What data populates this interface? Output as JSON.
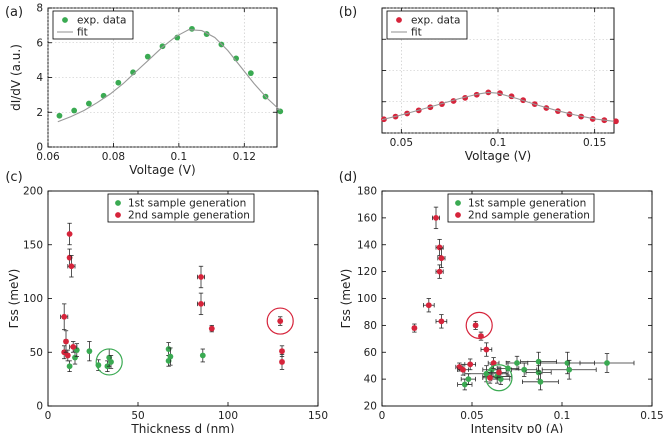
{
  "colors": {
    "green": "#3aaa52",
    "red": "#d6243b",
    "fit": "#999999",
    "grid": "#bfbfbf",
    "err": "#2a2a2a",
    "circle_green": "#3aaa52",
    "circle_red": "#d6243b"
  },
  "chart_data": [
    {
      "panel": "(a)",
      "type": "scatter",
      "xlabel": "Voltage (V)",
      "ylabel": "dI/dV (a.u.)",
      "xlim": [
        0.06,
        0.13
      ],
      "ylim": [
        0,
        8
      ],
      "xticks": [
        "0.06",
        "0.08",
        "0.1",
        "0.12"
      ],
      "yticks": [
        "0",
        "2",
        "4",
        "6",
        "8"
      ],
      "grid": true,
      "legend_position": "top-left",
      "series": [
        {
          "name": "exp. data",
          "kind": "points",
          "color": "green",
          "x": [
            0.0635,
            0.068,
            0.0725,
            0.077,
            0.0815,
            0.086,
            0.0905,
            0.095,
            0.0995,
            0.104,
            0.1085,
            0.113,
            0.1175,
            0.122,
            0.1265,
            0.131
          ],
          "y": [
            1.8,
            2.1,
            2.5,
            2.95,
            3.7,
            4.3,
            5.2,
            5.8,
            6.3,
            6.8,
            6.5,
            5.9,
            5.1,
            4.25,
            2.9,
            2.05
          ]
        },
        {
          "name": "fit",
          "kind": "line",
          "color": "fit",
          "x": [
            0.063,
            0.067,
            0.071,
            0.075,
            0.079,
            0.083,
            0.087,
            0.091,
            0.095,
            0.099,
            0.103,
            0.107,
            0.111,
            0.115,
            0.119,
            0.123,
            0.127,
            0.131
          ],
          "y": [
            1.45,
            1.75,
            2.1,
            2.55,
            3.05,
            3.65,
            4.35,
            5.05,
            5.75,
            6.35,
            6.75,
            6.7,
            6.3,
            5.55,
            4.6,
            3.65,
            2.8,
            2.1
          ]
        }
      ]
    },
    {
      "panel": "(b)",
      "type": "scatter",
      "xlabel": "Voltage (V)",
      "xlim": [
        0.04,
        0.16
      ],
      "ylim": [
        0,
        8
      ],
      "xticks": [
        "0.05",
        "0.1",
        "0.15"
      ],
      "grid": true,
      "legend_position": "top-left",
      "series": [
        {
          "name": "exp. data",
          "kind": "points",
          "color": "red",
          "x": [
            0.041,
            0.047,
            0.053,
            0.059,
            0.065,
            0.071,
            0.077,
            0.083,
            0.089,
            0.095,
            0.101,
            0.107,
            0.113,
            0.119,
            0.125,
            0.131,
            0.137,
            0.143,
            0.149,
            0.155,
            0.161
          ],
          "y": [
            0.88,
            1.05,
            1.25,
            1.45,
            1.65,
            1.85,
            2.05,
            2.25,
            2.45,
            2.6,
            2.55,
            2.35,
            2.1,
            1.85,
            1.6,
            1.4,
            1.2,
            1.05,
            0.9,
            0.82,
            0.75
          ]
        },
        {
          "name": "fit",
          "kind": "line",
          "color": "fit",
          "x": [
            0.04,
            0.05,
            0.06,
            0.07,
            0.08,
            0.09,
            0.095,
            0.1,
            0.11,
            0.12,
            0.13,
            0.14,
            0.15,
            0.16
          ],
          "y": [
            0.85,
            1.15,
            1.5,
            1.85,
            2.2,
            2.5,
            2.6,
            2.55,
            2.2,
            1.8,
            1.45,
            1.15,
            0.9,
            0.75
          ]
        }
      ]
    },
    {
      "panel": "(c)",
      "type": "scatter",
      "xlabel": "Thickness d (nm)",
      "ylabel": "Γss (meV)",
      "xlim": [
        0,
        150
      ],
      "ylim": [
        0,
        200
      ],
      "xticks": [
        "0",
        "50",
        "100",
        "150"
      ],
      "yticks": [
        "0",
        "50",
        "100",
        "150",
        "200"
      ],
      "grid": false,
      "legend_position": "top-center",
      "series": [
        {
          "name": "1st sample generation",
          "kind": "points",
          "color": "green",
          "points": [
            {
              "x": 12,
              "y": 37,
              "xe": 0,
              "ye": 5
            },
            {
              "x": 15,
              "y": 45,
              "xe": 0,
              "ye": 6
            },
            {
              "x": 16,
              "y": 52,
              "xe": 1,
              "ye": 6
            },
            {
              "x": 23,
              "y": 51,
              "xe": 0,
              "ye": 9
            },
            {
              "x": 28,
              "y": 38,
              "xe": 0,
              "ye": 5
            },
            {
              "x": 33,
              "y": 37,
              "xe": 0,
              "ye": 5
            },
            {
              "x": 34,
              "y": 45,
              "xe": 0,
              "ye": 8
            },
            {
              "x": 35,
              "y": 41,
              "xe": 0,
              "ye": 6
            },
            {
              "x": 67,
              "y": 42,
              "xe": 0,
              "ye": 5
            },
            {
              "x": 67,
              "y": 53,
              "xe": 0,
              "ye": 6
            },
            {
              "x": 68,
              "y": 46,
              "xe": 0,
              "ye": 8
            },
            {
              "x": 86,
              "y": 47,
              "xe": 0,
              "ye": 6
            }
          ]
        },
        {
          "name": "2nd sample generation",
          "kind": "points",
          "color": "red",
          "points": [
            {
              "x": 9,
              "y": 83,
              "xe": 2,
              "ye": 12
            },
            {
              "x": 9,
              "y": 50,
              "xe": 1,
              "ye": 6
            },
            {
              "x": 10,
              "y": 60,
              "xe": 1,
              "ye": 10
            },
            {
              "x": 11,
              "y": 47,
              "xe": 1,
              "ye": 5
            },
            {
              "x": 12,
              "y": 160,
              "xe": 0,
              "ye": 10
            },
            {
              "x": 12,
              "y": 138,
              "xe": 0,
              "ye": 8
            },
            {
              "x": 13,
              "y": 130,
              "xe": 2,
              "ye": 10
            },
            {
              "x": 14,
              "y": 55,
              "xe": 2,
              "ye": 5
            },
            {
              "x": 85,
              "y": 120,
              "xe": 2,
              "ye": 10
            },
            {
              "x": 85,
              "y": 95,
              "xe": 2,
              "ye": 10
            },
            {
              "x": 91,
              "y": 72,
              "xe": 1,
              "ye": 3
            },
            {
              "x": 129,
              "y": 79,
              "xe": 1,
              "ye": 4
            },
            {
              "x": 130,
              "y": 51,
              "xe": 1,
              "ye": 5
            },
            {
              "x": 130,
              "y": 41,
              "xe": 1,
              "ye": 7
            }
          ]
        }
      ],
      "circles": [
        {
          "x": 34,
          "y": 41,
          "color": "circle_green"
        },
        {
          "x": 129,
          "y": 79,
          "color": "circle_red"
        }
      ]
    },
    {
      "panel": "(d)",
      "type": "scatter",
      "xlabel": "Intensity p0 (A)",
      "ylabel": "Γss (meV)",
      "xlim": [
        0,
        0.15
      ],
      "ylim": [
        20,
        180
      ],
      "xticks": [
        "0",
        "0.05",
        "0.1",
        "0.15"
      ],
      "yticks": [
        "20",
        "40",
        "60",
        "80",
        "100",
        "120",
        "140",
        "160",
        "180"
      ],
      "grid": false,
      "legend_position": "top-center",
      "series": [
        {
          "name": "1st sample generation",
          "kind": "points",
          "color": "green",
          "points": [
            {
              "x": 0.046,
              "y": 36,
              "xe": 0.004,
              "ye": 4
            },
            {
              "x": 0.048,
              "y": 40,
              "xe": 0.004,
              "ye": 4
            },
            {
              "x": 0.058,
              "y": 44,
              "xe": 0.012,
              "ye": 6
            },
            {
              "x": 0.061,
              "y": 47,
              "xe": 0.005,
              "ye": 4
            },
            {
              "x": 0.064,
              "y": 42,
              "xe": 0.008,
              "ye": 5
            },
            {
              "x": 0.066,
              "y": 40,
              "xe": 0.005,
              "ye": 4
            },
            {
              "x": 0.07,
              "y": 48,
              "xe": 0.006,
              "ye": 5
            },
            {
              "x": 0.075,
              "y": 52,
              "xe": 0.006,
              "ye": 5
            },
            {
              "x": 0.079,
              "y": 47,
              "xe": 0.007,
              "ye": 5
            },
            {
              "x": 0.087,
              "y": 45,
              "xe": 0.007,
              "ye": 5
            },
            {
              "x": 0.087,
              "y": 53,
              "xe": 0.01,
              "ye": 7
            },
            {
              "x": 0.088,
              "y": 38,
              "xe": 0.01,
              "ye": 6
            },
            {
              "x": 0.103,
              "y": 52,
              "xe": 0.015,
              "ye": 8
            },
            {
              "x": 0.104,
              "y": 47,
              "xe": 0.015,
              "ye": 7
            },
            {
              "x": 0.125,
              "y": 52,
              "xe": 0.015,
              "ye": 7
            }
          ]
        },
        {
          "name": "2nd sample generation",
          "kind": "points",
          "color": "red",
          "points": [
            {
              "x": 0.018,
              "y": 78,
              "xe": 0.001,
              "ye": 3
            },
            {
              "x": 0.026,
              "y": 95,
              "xe": 0.003,
              "ye": 5
            },
            {
              "x": 0.03,
              "y": 160,
              "xe": 0.002,
              "ye": 8
            },
            {
              "x": 0.032,
              "y": 138,
              "xe": 0.002,
              "ye": 6
            },
            {
              "x": 0.032,
              "y": 120,
              "xe": 0.002,
              "ye": 5
            },
            {
              "x": 0.033,
              "y": 130,
              "xe": 0.002,
              "ye": 7
            },
            {
              "x": 0.033,
              "y": 83,
              "xe": 0.003,
              "ye": 5
            },
            {
              "x": 0.043,
              "y": 49,
              "xe": 0.002,
              "ye": 3
            },
            {
              "x": 0.045,
              "y": 47,
              "xe": 0.003,
              "ye": 4
            },
            {
              "x": 0.049,
              "y": 51,
              "xe": 0.003,
              "ye": 4
            },
            {
              "x": 0.052,
              "y": 80,
              "xe": 0.001,
              "ye": 3
            },
            {
              "x": 0.055,
              "y": 72,
              "xe": 0.001,
              "ye": 3
            },
            {
              "x": 0.058,
              "y": 62,
              "xe": 0.003,
              "ye": 5
            },
            {
              "x": 0.06,
              "y": 41,
              "xe": 0.004,
              "ye": 4
            },
            {
              "x": 0.062,
              "y": 52,
              "xe": 0.003,
              "ye": 4
            },
            {
              "x": 0.065,
              "y": 45,
              "xe": 0.004,
              "ye": 4
            }
          ]
        }
      ],
      "circles": [
        {
          "x": 0.065,
          "y": 41,
          "color": "circle_green"
        },
        {
          "x": 0.054,
          "y": 80,
          "color": "circle_red"
        }
      ]
    }
  ]
}
